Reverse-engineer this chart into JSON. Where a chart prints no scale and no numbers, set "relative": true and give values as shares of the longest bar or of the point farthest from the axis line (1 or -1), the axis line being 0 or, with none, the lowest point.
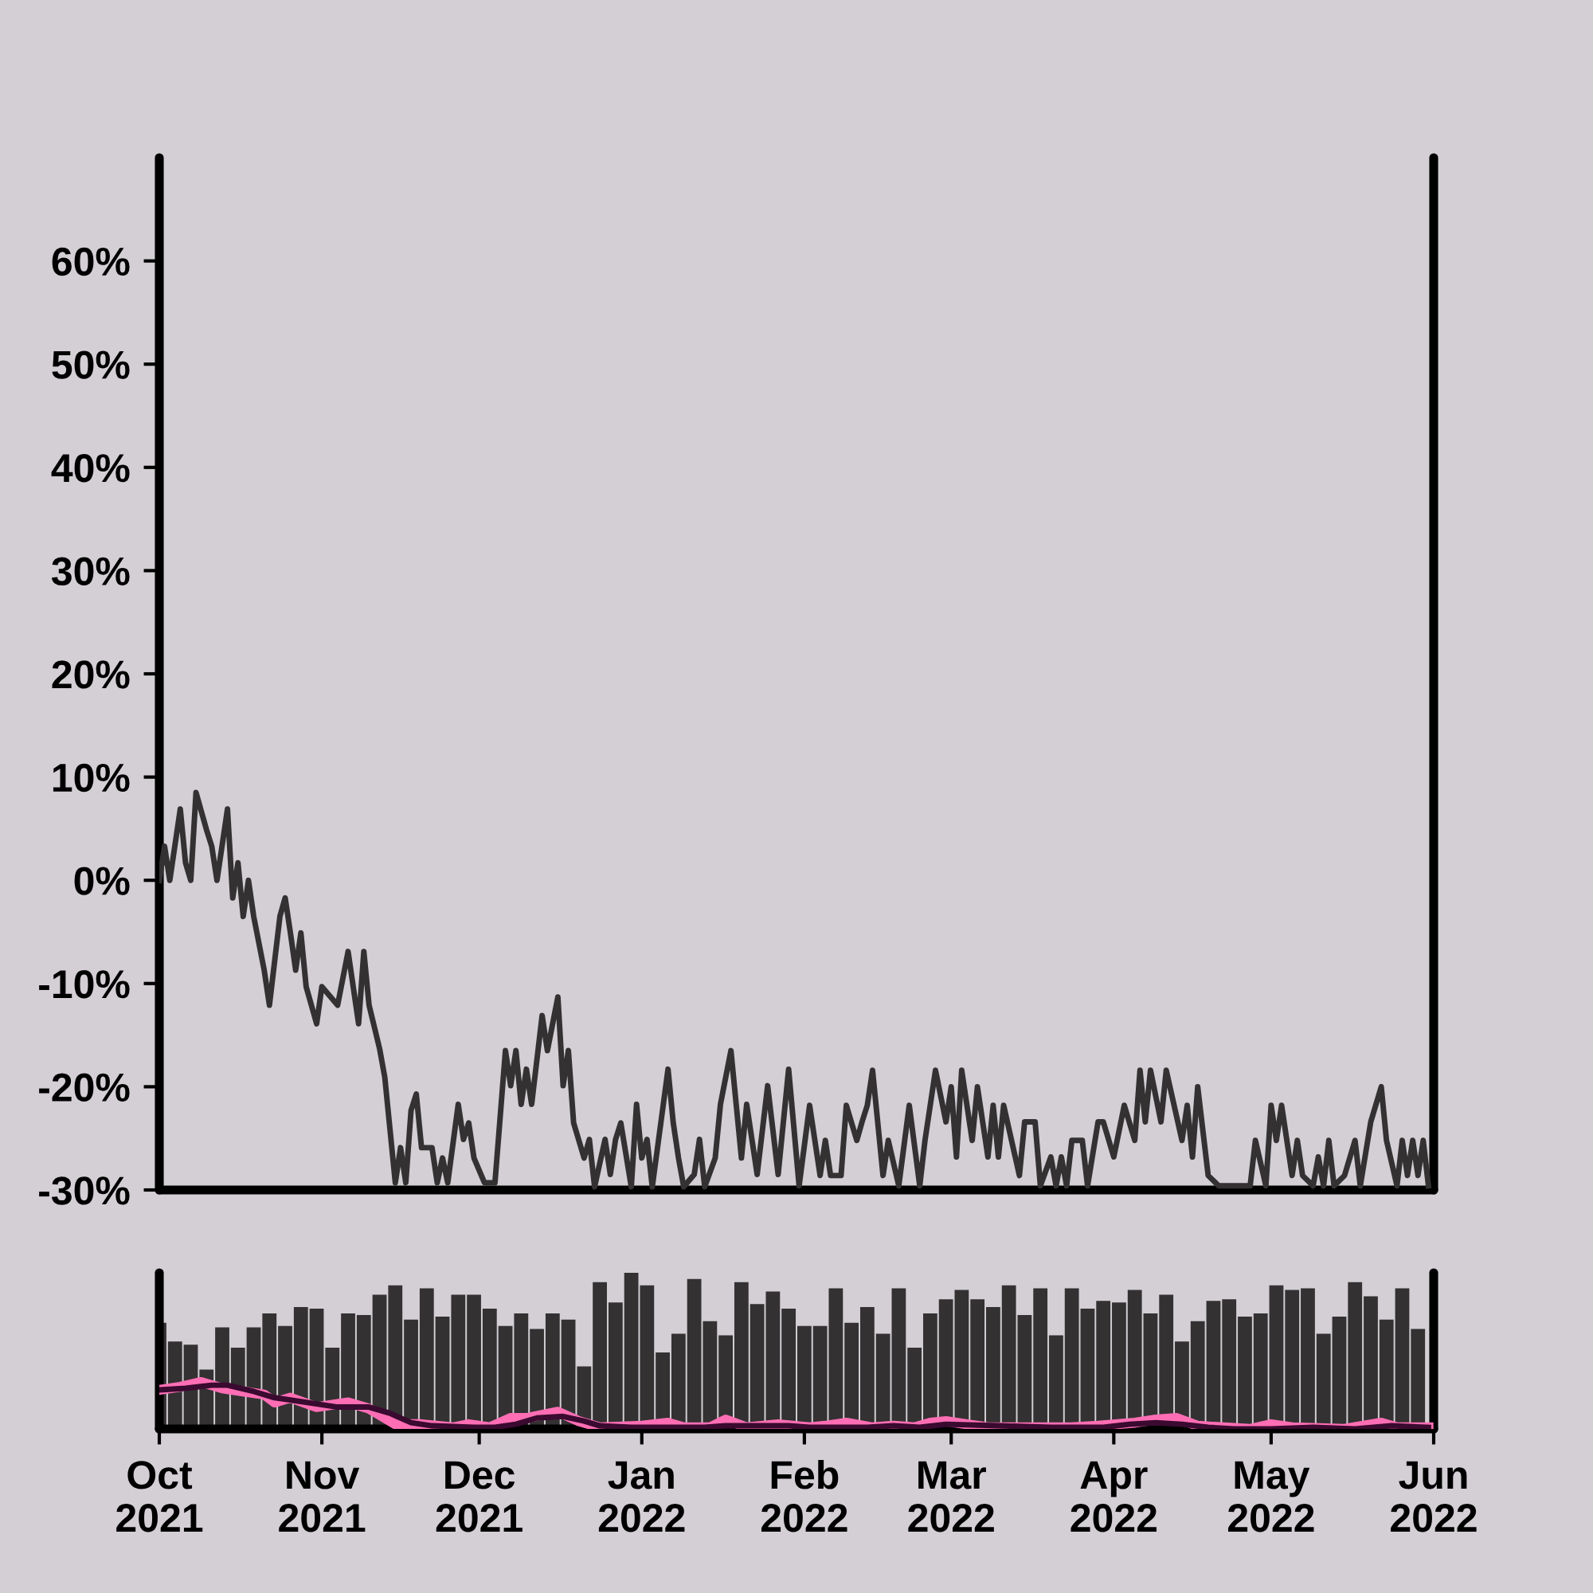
{
  "chart_data": [
    {
      "type": "line",
      "xlim": [
        "2021-10-01",
        "2022-06-01"
      ],
      "ylim": [
        -30,
        70
      ],
      "yticks": [
        {
          "value": -30,
          "label": "-30%"
        },
        {
          "value": -20,
          "label": "-20%"
        },
        {
          "value": -10,
          "label": "-10%"
        },
        {
          "value": 0,
          "label": "0%"
        },
        {
          "value": 10,
          "label": "10%"
        },
        {
          "value": 20,
          "label": "20%"
        },
        {
          "value": 30,
          "label": "30%"
        },
        {
          "value": 40,
          "label": "40%"
        },
        {
          "value": 50,
          "label": "50%"
        },
        {
          "value": 60,
          "label": "60%"
        }
      ],
      "tick_labels": "y",
      "grid": false,
      "line_style": "solid",
      "marker": "none",
      "series": [
        {
          "color": "#333132",
          "x": [
            "2021-10-01",
            "2021-10-02",
            "2021-10-03",
            "2021-10-05",
            "2021-10-06",
            "2021-10-07",
            "2021-10-08",
            "2021-10-10",
            "2021-10-11",
            "2021-10-12",
            "2021-10-14",
            "2021-10-15",
            "2021-10-16",
            "2021-10-17",
            "2021-10-18",
            "2021-10-19",
            "2021-10-21",
            "2021-10-22",
            "2021-10-24",
            "2021-10-25",
            "2021-10-26",
            "2021-10-27",
            "2021-10-28",
            "2021-10-29",
            "2021-10-30",
            "2021-10-31",
            "2021-11-01",
            "2021-11-04",
            "2021-11-06",
            "2021-11-08",
            "2021-11-09",
            "2021-11-10",
            "2021-11-12",
            "2021-11-13",
            "2021-11-15",
            "2021-11-16",
            "2021-11-17",
            "2021-11-18",
            "2021-11-19",
            "2021-11-20",
            "2021-11-22",
            "2021-11-23",
            "2021-11-24",
            "2021-11-25",
            "2021-11-27",
            "2021-11-28",
            "2021-11-29",
            "2021-11-30",
            "2021-12-02",
            "2021-12-04",
            "2021-12-06",
            "2021-12-07",
            "2021-12-08",
            "2021-12-09",
            "2021-12-10",
            "2021-12-11",
            "2021-12-13",
            "2021-12-14",
            "2021-12-16",
            "2021-12-17",
            "2021-12-18",
            "2021-12-19",
            "2021-12-21",
            "2021-12-22",
            "2021-12-23",
            "2021-12-25",
            "2021-12-26",
            "2021-12-27",
            "2021-12-28",
            "2021-12-30",
            "2021-12-31",
            "2022-01-01",
            "2022-01-02",
            "2022-01-03",
            "2022-01-06",
            "2022-01-07",
            "2022-01-08",
            "2022-01-09",
            "2022-01-11",
            "2022-01-12",
            "2022-01-13",
            "2022-01-15",
            "2022-01-16",
            "2022-01-18",
            "2022-01-20",
            "2022-01-21",
            "2022-01-23",
            "2022-01-25",
            "2022-01-27",
            "2022-01-29",
            "2022-01-31",
            "2022-02-02",
            "2022-02-03",
            "2022-02-04",
            "2022-02-05",
            "2022-02-06",
            "2022-02-08",
            "2022-02-09",
            "2022-02-11",
            "2022-02-12",
            "2022-02-13",
            "2022-02-14",
            "2022-02-16",
            "2022-02-17",
            "2022-02-19",
            "2022-02-21",
            "2022-02-23",
            "2022-02-24",
            "2022-02-26",
            "2022-02-28",
            "2022-03-01",
            "2022-03-02",
            "2022-03-03",
            "2022-03-05",
            "2022-03-06",
            "2022-03-08",
            "2022-03-09",
            "2022-03-10",
            "2022-03-11",
            "2022-03-14",
            "2022-03-15",
            "2022-03-17",
            "2022-03-18",
            "2022-03-20",
            "2022-03-21",
            "2022-03-22",
            "2022-03-23",
            "2022-03-24",
            "2022-03-26",
            "2022-03-27",
            "2022-03-29",
            "2022-03-30",
            "2022-04-01",
            "2022-04-03",
            "2022-04-05",
            "2022-04-06",
            "2022-04-07",
            "2022-04-08",
            "2022-04-10",
            "2022-04-11",
            "2022-04-14",
            "2022-04-15",
            "2022-04-16",
            "2022-04-17",
            "2022-04-19",
            "2022-04-21",
            "2022-04-27",
            "2022-04-28",
            "2022-04-30",
            "2022-05-01",
            "2022-05-02",
            "2022-05-03",
            "2022-05-05",
            "2022-05-06",
            "2022-05-07",
            "2022-05-09",
            "2022-05-10",
            "2022-05-11",
            "2022-05-12",
            "2022-05-13",
            "2022-05-15",
            "2022-05-17",
            "2022-05-18",
            "2022-05-20",
            "2022-05-22",
            "2022-05-23",
            "2022-05-25",
            "2022-05-26",
            "2022-05-27",
            "2022-05-28",
            "2022-05-29",
            "2022-05-30",
            "2022-05-31"
          ],
          "values": [
            0,
            3.3,
            0,
            6.9,
            1.7,
            0,
            8.5,
            4.9,
            3.3,
            0,
            6.9,
            -1.7,
            1.7,
            -3.5,
            0,
            -3.5,
            -8.7,
            -12.1,
            -3.5,
            -1.7,
            -5.1,
            -8.7,
            -5.1,
            -10.3,
            -12.1,
            -13.9,
            -10.3,
            -12.1,
            -6.9,
            -13.9,
            -6.9,
            -12.1,
            -16.3,
            -19.1,
            -29.3,
            -25.9,
            -29.3,
            -22.3,
            -20.7,
            -25.9,
            -25.9,
            -29.3,
            -26.9,
            -29.3,
            -21.7,
            -25.1,
            -23.5,
            -26.9,
            -29.3,
            -29.3,
            -16.5,
            -19.9,
            -16.5,
            -21.7,
            -18.3,
            -21.7,
            -13.1,
            -16.5,
            -11.3,
            -19.9,
            -16.5,
            -23.5,
            -26.9,
            -25.1,
            -29.7,
            -25.1,
            -28.5,
            -25.1,
            -23.5,
            -29.7,
            -21.7,
            -26.9,
            -25.1,
            -29.7,
            -18.3,
            -23.5,
            -26.9,
            -29.7,
            -28.5,
            -25.1,
            -29.7,
            -26.9,
            -21.7,
            -16.5,
            -26.9,
            -21.7,
            -28.5,
            -19.9,
            -28.5,
            -18.3,
            -29.6,
            -21.8,
            -25.2,
            -28.6,
            -25.2,
            -28.6,
            -28.6,
            -21.8,
            -25.2,
            -23.4,
            -21.8,
            -18.4,
            -28.6,
            -25.2,
            -29.6,
            -21.8,
            -29.6,
            -25.2,
            -18.4,
            -23.4,
            -20,
            -26.8,
            -18.4,
            -25.2,
            -20,
            -26.8,
            -21.8,
            -26.8,
            -21.8,
            -28.6,
            -23.4,
            -23.4,
            -29.6,
            -26.8,
            -29.6,
            -26.8,
            -29.6,
            -25.2,
            -25.2,
            -29.6,
            -23.4,
            -23.4,
            -26.8,
            -21.8,
            -25.2,
            -18.4,
            -23.4,
            -18.4,
            -23.4,
            -18.4,
            -25.2,
            -21.8,
            -26.8,
            -20,
            -28.6,
            -29.6,
            -29.6,
            -25.2,
            -29.6,
            -21.8,
            -25.2,
            -21.8,
            -28.6,
            -25.2,
            -28.6,
            -29.6,
            -26.8,
            -29.6,
            -25.2,
            -29.6,
            -28.6,
            -25.2,
            -29.6,
            -23.4,
            -20,
            -25.2,
            -29.6,
            -25.2,
            -28.6,
            -25.2,
            -28.6,
            -25.2,
            -29.6
          ]
        }
      ]
    },
    {
      "type": "bar",
      "relative": true,
      "xlim": [
        "2021-10-01",
        "2022-06-01"
      ],
      "xticks": [
        {
          "value": "2021-10-01",
          "label": "Oct\n2021"
        },
        {
          "value": "2021-11-01",
          "label": "Nov\n2021"
        },
        {
          "value": "2021-12-01",
          "label": "Dec\n2021"
        },
        {
          "value": "2022-01-01",
          "label": "Jan\n2022"
        },
        {
          "value": "2022-02-01",
          "label": "Feb\n2022"
        },
        {
          "value": "2022-03-01",
          "label": "Mar\n2022"
        },
        {
          "value": "2022-04-01",
          "label": "Apr\n2022"
        },
        {
          "value": "2022-05-01",
          "label": "May\n2022"
        },
        {
          "value": "2022-06-01",
          "label": "Jun\n2022"
        }
      ],
      "tick_labels": "x",
      "grid": false,
      "series": [
        {
          "type": "bar",
          "color": "#333132",
          "x": [
            "2021-10-01",
            "2021-10-04",
            "2021-10-07",
            "2021-10-10",
            "2021-10-13",
            "2021-10-16",
            "2021-10-19",
            "2021-10-22",
            "2021-10-25",
            "2021-10-28",
            "2021-10-31",
            "2021-11-03",
            "2021-11-06",
            "2021-11-09",
            "2021-11-12",
            "2021-11-15",
            "2021-11-18",
            "2021-11-21",
            "2021-11-24",
            "2021-11-27",
            "2021-11-30",
            "2021-12-03",
            "2021-12-06",
            "2021-12-09",
            "2021-12-12",
            "2021-12-15",
            "2021-12-18",
            "2021-12-21",
            "2021-12-24",
            "2021-12-27",
            "2021-12-30",
            "2022-01-02",
            "2022-01-05",
            "2022-01-08",
            "2022-01-11",
            "2022-01-14",
            "2022-01-17",
            "2022-01-20",
            "2022-01-23",
            "2022-01-26",
            "2022-01-29",
            "2022-02-01",
            "2022-02-04",
            "2022-02-07",
            "2022-02-10",
            "2022-02-13",
            "2022-02-16",
            "2022-02-19",
            "2022-02-22",
            "2022-02-25",
            "2022-02-28",
            "2022-03-03",
            "2022-03-06",
            "2022-03-09",
            "2022-03-12",
            "2022-03-15",
            "2022-03-18",
            "2022-03-21",
            "2022-03-24",
            "2022-03-27",
            "2022-03-30",
            "2022-04-02",
            "2022-04-05",
            "2022-04-08",
            "2022-04-11",
            "2022-04-14",
            "2022-04-17",
            "2022-04-20",
            "2022-04-23",
            "2022-04-26",
            "2022-04-29",
            "2022-05-02",
            "2022-05-05",
            "2022-05-08",
            "2022-05-11",
            "2022-05-14",
            "2022-05-17",
            "2022-05-20",
            "2022-05-23",
            "2022-05-26",
            "2022-05-29"
          ],
          "values": [
            0.68,
            0.56,
            0.54,
            0.38,
            0.65,
            0.52,
            0.65,
            0.74,
            0.66,
            0.78,
            0.77,
            0.52,
            0.74,
            0.73,
            0.86,
            0.92,
            0.7,
            0.9,
            0.72,
            0.86,
            0.86,
            0.77,
            0.66,
            0.74,
            0.64,
            0.74,
            0.7,
            0.4,
            0.94,
            0.81,
            1,
            0.92,
            0.49,
            0.61,
            0.96,
            0.69,
            0.6,
            0.94,
            0.8,
            0.88,
            0.77,
            0.66,
            0.66,
            0.9,
            0.68,
            0.78,
            0.61,
            0.9,
            0.52,
            0.74,
            0.83,
            0.89,
            0.83,
            0.78,
            0.92,
            0.73,
            0.9,
            0.6,
            0.9,
            0.77,
            0.82,
            0.81,
            0.89,
            0.74,
            0.86,
            0.56,
            0.69,
            0.82,
            0.83,
            0.72,
            0.74,
            0.92,
            0.89,
            0.9,
            0.61,
            0.72,
            0.94,
            0.85,
            0.7,
            0.9,
            0.64
          ]
        },
        {
          "type": "line",
          "color": "#ff6eb4",
          "x": [
            "2021-10-01",
            "2021-10-05",
            "2021-10-09",
            "2021-10-13",
            "2021-10-17",
            "2021-10-21",
            "2021-10-23",
            "2021-10-26",
            "2021-10-31",
            "2021-11-06",
            "2021-11-10",
            "2021-11-15",
            "2021-11-20",
            "2021-11-26",
            "2021-11-29",
            "2021-12-03",
            "2021-12-07",
            "2021-12-10",
            "2021-12-16",
            "2021-12-20",
            "2021-12-24",
            "2022-01-01",
            "2022-01-06",
            "2022-01-09",
            "2022-01-14",
            "2022-01-17",
            "2022-01-21",
            "2022-01-27",
            "2022-02-02",
            "2022-02-05",
            "2022-02-09",
            "2022-02-14",
            "2022-02-18",
            "2022-02-22",
            "2022-02-25",
            "2022-02-28",
            "2022-03-04",
            "2022-03-08",
            "2022-03-20",
            "2022-03-24",
            "2022-03-29",
            "2022-04-05",
            "2022-04-09",
            "2022-04-13",
            "2022-04-17",
            "2022-04-22",
            "2022-04-27",
            "2022-05-01",
            "2022-05-05",
            "2022-05-15",
            "2022-05-22",
            "2022-05-25",
            "2022-05-31"
          ],
          "values": [
            0.25,
            0.27,
            0.3,
            0.26,
            0.24,
            0.22,
            0.17,
            0.2,
            0.14,
            0.17,
            0.13,
            0.03,
            0.03,
            0.01,
            0.03,
            0.01,
            0.07,
            0.07,
            0.11,
            0.05,
            0.01,
            0.02,
            0.04,
            0.01,
            0.01,
            0.06,
            0.01,
            0.03,
            0.01,
            0.02,
            0.04,
            0.01,
            0.02,
            0.01,
            0.04,
            0.05,
            0.03,
            0.01,
            0.01,
            0.01,
            0.02,
            0.04,
            0.06,
            0.07,
            0.02,
            0.01,
            0,
            0.03,
            0.01,
            0,
            0.04,
            0.01,
            0.01
          ]
        },
        {
          "type": "line",
          "color": "#3a0a30",
          "x": [
            "2021-10-01",
            "2021-10-06",
            "2021-10-11",
            "2021-10-14",
            "2021-10-19",
            "2021-10-23",
            "2021-10-29",
            "2021-11-04",
            "2021-11-10",
            "2021-11-14",
            "2021-11-18",
            "2021-11-22",
            "2021-11-30",
            "2021-12-04",
            "2021-12-08",
            "2021-12-12",
            "2021-12-17",
            "2021-12-21",
            "2021-12-24",
            "2021-12-30",
            "2022-01-09",
            "2022-01-13",
            "2022-01-17",
            "2022-01-29",
            "2022-02-02",
            "2022-02-13",
            "2022-02-18",
            "2022-02-23",
            "2022-02-28",
            "2022-03-10",
            "2022-03-20",
            "2022-03-30",
            "2022-04-04",
            "2022-04-09",
            "2022-04-14",
            "2022-04-19",
            "2022-04-24",
            "2022-05-01",
            "2022-05-09",
            "2022-05-17",
            "2022-05-24",
            "2022-05-31"
          ],
          "values": [
            0.25,
            0.26,
            0.28,
            0.28,
            0.24,
            0.2,
            0.17,
            0.14,
            0.14,
            0.1,
            0.04,
            0.02,
            0.01,
            0.01,
            0.03,
            0.07,
            0.08,
            0.05,
            0.02,
            0.01,
            0.01,
            0.01,
            0.02,
            0.02,
            0.01,
            0.01,
            0.02,
            0.01,
            0.03,
            0.02,
            0.01,
            0.01,
            0.03,
            0.04,
            0.03,
            0.01,
            0,
            0,
            0.01,
            0,
            0.02,
            0.01
          ]
        }
      ]
    }
  ]
}
